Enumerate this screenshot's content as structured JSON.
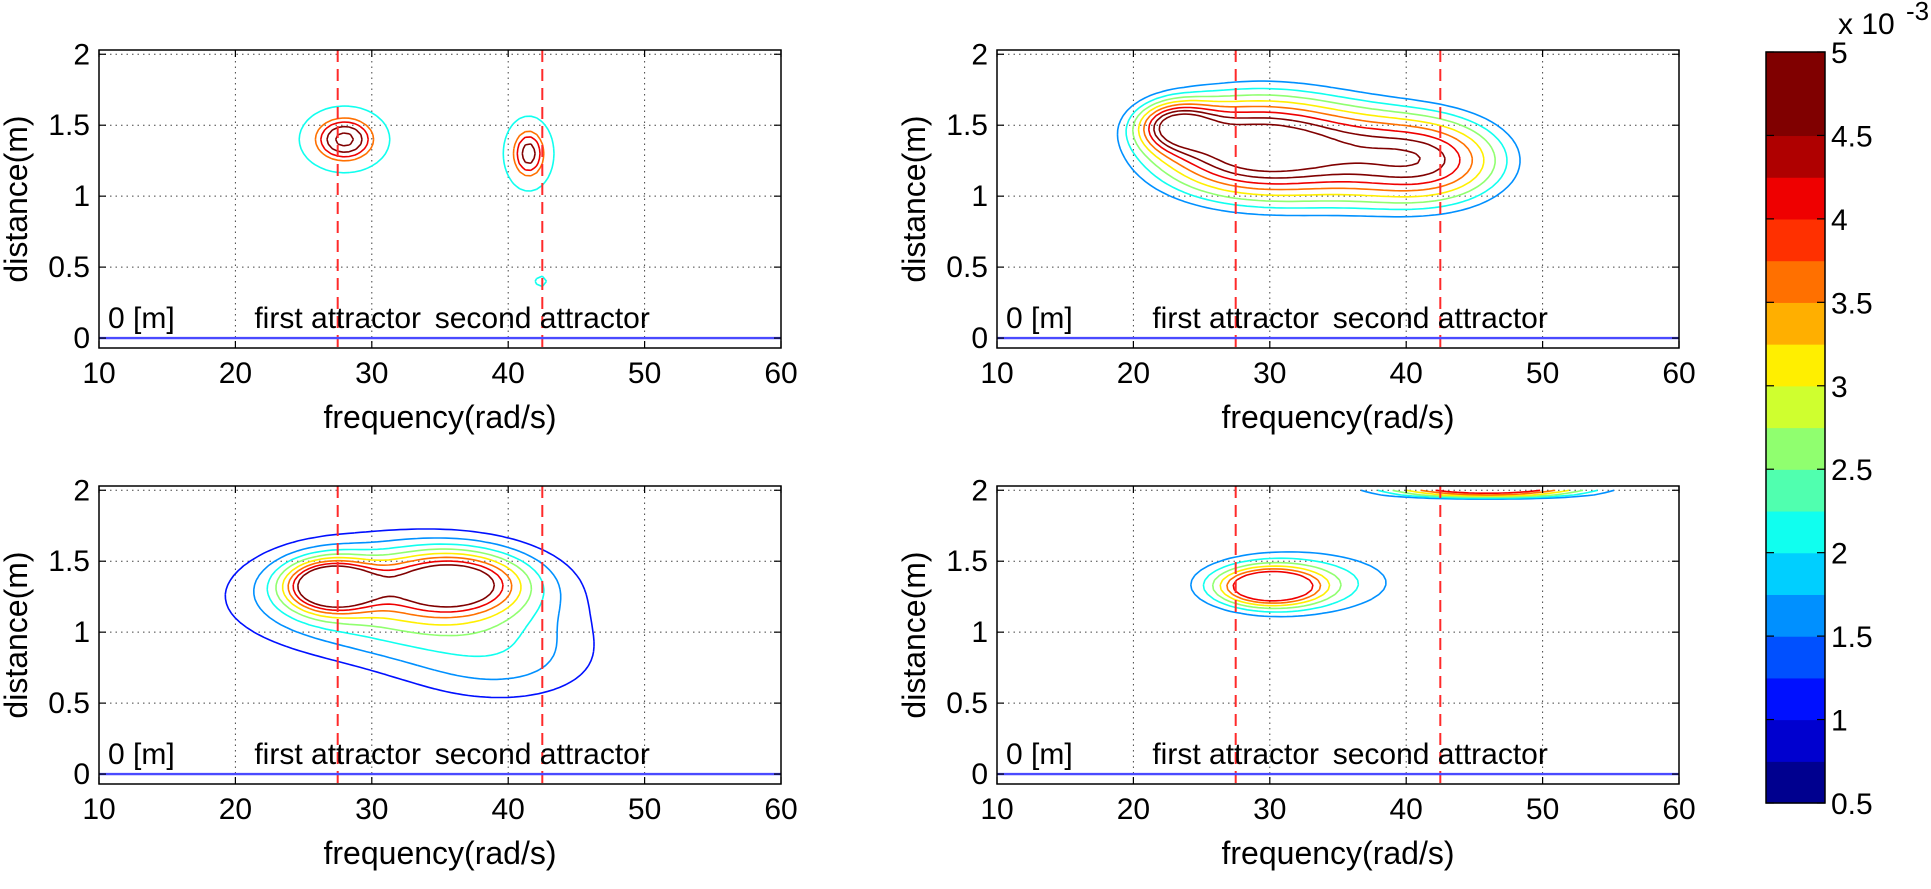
{
  "figure": {
    "description_free": true,
    "colorbar": {
      "multiplier_label": "x 10",
      "multiplier_exp": "-3",
      "range": [
        0.5,
        5
      ],
      "ticks": [
        0.5,
        1,
        1.5,
        2,
        2.5,
        3,
        3.5,
        4,
        4.5,
        5
      ],
      "tick_labels": [
        "0.5",
        "1",
        "1.5",
        "2",
        "2.5",
        "3",
        "3.5",
        "4",
        "4.5",
        "5"
      ],
      "colors": [
        "#00008f",
        "#0000cf",
        "#0010ff",
        "#0050ff",
        "#0090ff",
        "#00cfff",
        "#10ffef",
        "#50ffaf",
        "#90ff6f",
        "#cfff2f",
        "#ffef00",
        "#ffaf00",
        "#ff7000",
        "#ff3000",
        "#ef0000",
        "#af0000",
        "#800000",
        "#800000"
      ]
    }
  },
  "chart_data": [
    {
      "type": "contour",
      "panel": "top-left",
      "xlabel": "frequency(rad/s)",
      "ylabel": "distance(m)",
      "xlim": [
        10,
        60
      ],
      "ylim": [
        0,
        2
      ],
      "xticks": [
        10,
        20,
        30,
        40,
        50,
        60
      ],
      "xtick_labels": [
        "10",
        "20",
        "30",
        "40",
        "50",
        "60"
      ],
      "yticks": [
        0,
        0.5,
        1,
        1.5,
        2
      ],
      "ytick_labels": [
        "0",
        "0.5",
        "1",
        "1.5",
        "2"
      ],
      "grid": true,
      "attractors": [
        {
          "x": 27.5,
          "label": "first attractor"
        },
        {
          "x": 42.5,
          "label": "second attractor"
        }
      ],
      "baseline": {
        "y": 0,
        "label": "0 [m]"
      },
      "annotation_y": 0.15,
      "peaks": [
        {
          "x": 28,
          "y": 1.4,
          "sx": 2.4,
          "sy": 0.17,
          "peak": 5.2
        },
        {
          "x": 41.5,
          "y": 1.3,
          "sx": 1.4,
          "sy": 0.2,
          "peak": 4.8
        },
        {
          "x": 42.4,
          "y": 0.4,
          "sx": 0.6,
          "sy": 0.05,
          "peak": 2.6
        }
      ],
      "levels": [
        2,
        3.5,
        4,
        4.5,
        5
      ]
    },
    {
      "type": "contour",
      "panel": "top-right",
      "xlabel": "frequency(rad/s)",
      "ylabel": "distance(m)",
      "xlim": [
        10,
        60
      ],
      "ylim": [
        0,
        2
      ],
      "xticks": [
        10,
        20,
        30,
        40,
        50,
        60
      ],
      "xtick_labels": [
        "10",
        "20",
        "30",
        "40",
        "50",
        "60"
      ],
      "yticks": [
        0,
        0.5,
        1,
        1.5,
        2
      ],
      "ytick_labels": [
        "0",
        "0.5",
        "1",
        "1.5",
        "2"
      ],
      "grid": true,
      "attractors": [
        {
          "x": 27.5,
          "label": "first attractor"
        },
        {
          "x": 42.5,
          "label": "second attractor"
        }
      ],
      "baseline": {
        "y": 0,
        "label": "0 [m]"
      },
      "annotation_y": 0.15,
      "peaks": [
        {
          "x": 28,
          "y": 1.35,
          "sx": 5.5,
          "sy": 0.28,
          "peak": 5.0
        },
        {
          "x": 42,
          "y": 1.25,
          "sx": 4.5,
          "sy": 0.25,
          "peak": 3.9
        },
        {
          "x": 35,
          "y": 1.3,
          "sx": 5,
          "sy": 0.3,
          "peak": 1.9
        },
        {
          "x": 23,
          "y": 1.5,
          "sx": 2,
          "sy": 0.12,
          "peak": 3.0
        }
      ],
      "levels": [
        1.5,
        2,
        2.5,
        3,
        3.5,
        4,
        4.5,
        5
      ]
    },
    {
      "type": "contour",
      "panel": "bottom-left",
      "xlabel": "frequency(rad/s)",
      "ylabel": "distance(m)",
      "xlim": [
        10,
        60
      ],
      "ylim": [
        0,
        2
      ],
      "xticks": [
        10,
        20,
        30,
        40,
        50,
        60
      ],
      "xtick_labels": [
        "10",
        "20",
        "30",
        "40",
        "50",
        "60"
      ],
      "yticks": [
        0,
        0.5,
        1,
        1.5,
        2
      ],
      "ytick_labels": [
        "0",
        "0.5",
        "1",
        "1.5",
        "2"
      ],
      "grid": true,
      "attractors": [
        {
          "x": 27.5,
          "label": "first attractor"
        },
        {
          "x": 42.5,
          "label": "second attractor"
        }
      ],
      "baseline": {
        "y": 0,
        "label": "0 [m]"
      },
      "annotation_y": 0.15,
      "peaks": [
        {
          "x": 32,
          "y": 1.25,
          "sx": 9,
          "sy": 0.32,
          "peak": 2.7
        },
        {
          "x": 27,
          "y": 1.33,
          "sx": 2.2,
          "sy": 0.12,
          "peak": 4.8
        },
        {
          "x": 36,
          "y": 1.35,
          "sx": 3.5,
          "sy": 0.15,
          "peak": 3.6
        },
        {
          "x": 40,
          "y": 0.75,
          "sx": 6,
          "sy": 0.25,
          "peak": 1.2
        }
      ],
      "levels": [
        1,
        1.5,
        2,
        2.5,
        3,
        3.5,
        4,
        4.5
      ]
    },
    {
      "type": "contour",
      "panel": "bottom-right",
      "xlabel": "frequency(rad/s)",
      "ylabel": "distance(m)",
      "xlim": [
        10,
        60
      ],
      "ylim": [
        0,
        2
      ],
      "xticks": [
        10,
        20,
        30,
        40,
        50,
        60
      ],
      "xtick_labels": [
        "10",
        "20",
        "30",
        "40",
        "50",
        "60"
      ],
      "yticks": [
        0,
        0.5,
        1,
        1.5,
        2
      ],
      "ytick_labels": [
        "0",
        "0.5",
        "1",
        "1.5",
        "2"
      ],
      "grid": true,
      "attractors": [
        {
          "x": 27.5,
          "label": "first attractor"
        },
        {
          "x": 42.5,
          "label": "second attractor"
        }
      ],
      "baseline": {
        "y": 0,
        "label": "0 [m]"
      },
      "annotation_y": 0.15,
      "peaks": [
        {
          "x": 32,
          "y": 1.35,
          "sx": 7,
          "sy": 0.22,
          "peak": 2.3
        },
        {
          "x": 30,
          "y": 1.32,
          "sx": 2.5,
          "sy": 0.09,
          "peak": 3.9
        },
        {
          "x": 46,
          "y": 2.0,
          "sx": 6,
          "sy": 0.04,
          "peak": 4.9
        }
      ],
      "levels": [
        1.5,
        2,
        2.5,
        3,
        3.5,
        4
      ]
    }
  ]
}
